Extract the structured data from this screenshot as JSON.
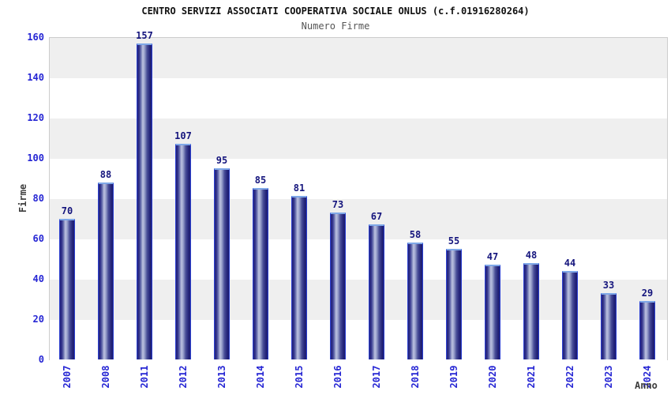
{
  "header": {
    "title": "CENTRO SERVIZI ASSOCIATI COOPERATIVA SOCIALE ONLUS (c.f.01916280264)",
    "subtitle": "Numero Firme"
  },
  "chart_data": {
    "type": "bar",
    "title": "CENTRO SERVIZI ASSOCIATI COOPERATIVA SOCIALE ONLUS (c.f.01916280264)",
    "subtitle": "Numero Firme",
    "xlabel": "Anno",
    "ylabel": "Firme",
    "categories": [
      "2007",
      "2008",
      "2011",
      "2012",
      "2013",
      "2014",
      "2015",
      "2016",
      "2017",
      "2018",
      "2019",
      "2020",
      "2021",
      "2022",
      "2023",
      "2024"
    ],
    "values": [
      70,
      88,
      157,
      107,
      95,
      85,
      81,
      73,
      67,
      58,
      55,
      47,
      48,
      44,
      33,
      29
    ],
    "ylim": [
      0,
      160
    ],
    "yticks": [
      0,
      20,
      40,
      60,
      80,
      100,
      120,
      140,
      160
    ],
    "grid": "alternating-horizontal-bands",
    "legend": "none",
    "colors": {
      "band_gray": "#efefef",
      "band_white": "#ffffff",
      "plot_border": "#cccccc",
      "bar_border": "#2b3fd0",
      "bar_top_cap": "#7fa8e8",
      "bar_dark": "#1d1d70",
      "bar_highlight": "#bdc2e0",
      "tick_label_blue": "#2626d4",
      "value_label_navy": "#15157d",
      "axis_title_gray": "#3d3d3d",
      "title_color": "#111111",
      "subtitle_color": "#555555"
    }
  }
}
